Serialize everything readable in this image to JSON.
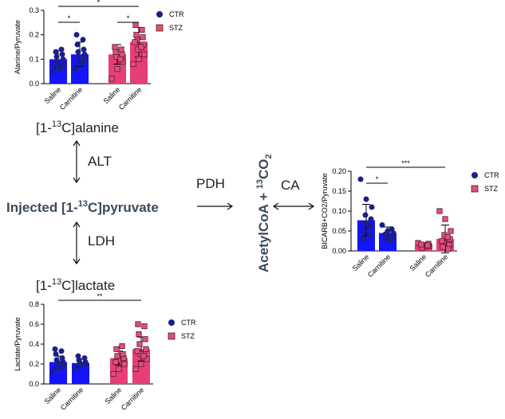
{
  "diagram": {
    "alanine": {
      "prefix": "[1-",
      "sup": "13",
      "suffix": "C]alanine"
    },
    "pyruvate": {
      "prefix": "Injected [1-",
      "sup": "13",
      "suffix": "C]pyruvate"
    },
    "lactate": {
      "prefix": "[1-",
      "sup": "13",
      "suffix": "C]lactate"
    },
    "acetyl": {
      "main": "AcetylCoA + ",
      "sup": "13",
      "rest": "CO",
      "sub": "2"
    },
    "alt": "ALT",
    "ldh": "LDH",
    "pdh": "PDH",
    "ca": "CA"
  },
  "chart_data": [
    {
      "type": "bar",
      "ylabel": "Alanine/Pyruvate",
      "categories": [
        "Saline",
        "Carnitine",
        "Saline",
        "Carnitine"
      ],
      "ylim": [
        0,
        0.3
      ],
      "yticks": [
        {
          "value": 0,
          "label": "0.0"
        },
        0.1,
        0.2,
        0.3
      ],
      "series": [
        {
          "name": "CTR",
          "color": "#1414ff",
          "point_color": "#1b1f8a",
          "marker": "circle",
          "values": [
            0.1,
            0.12,
            null,
            null
          ],
          "errors": [
            0.035,
            0.05,
            null,
            null
          ],
          "points": [
            [
              0.05,
              0.07,
              0.08,
              0.09,
              0.1,
              0.11,
              0.12,
              0.13,
              0.14,
              0.08,
              0.06
            ],
            [
              0.06,
              0.08,
              0.1,
              0.11,
              0.12,
              0.13,
              0.14,
              0.16,
              0.18,
              0.2,
              0.09
            ],
            null,
            null
          ]
        },
        {
          "name": "STZ",
          "color": "#e83e78",
          "point_color": "#e0507a",
          "marker": "square",
          "values": [
            null,
            null,
            0.12,
            0.17
          ],
          "errors": [
            null,
            null,
            0.04,
            0.06
          ],
          "points": [
            null,
            null,
            [
              0.02,
              0.06,
              0.09,
              0.11,
              0.12,
              0.13,
              0.14,
              0.15,
              0.1
            ],
            [
              0.08,
              0.1,
              0.12,
              0.14,
              0.16,
              0.18,
              0.19,
              0.2,
              0.22,
              0.24,
              0.15,
              0.17
            ]
          ]
        }
      ],
      "significance": [
        {
          "from": 0,
          "to": 1,
          "label": "*"
        },
        {
          "from": 0,
          "to": 3,
          "label": "*"
        },
        {
          "from": 2,
          "to": 3,
          "label": "*"
        }
      ]
    },
    {
      "type": "bar",
      "ylabel": "BICARB+CO2/Pyruvate",
      "categories": [
        "Saline",
        "Carnitine",
        "Saline",
        "Carnitine"
      ],
      "ylim": [
        0,
        0.2
      ],
      "yticks": [
        {
          "value": 0,
          "label": "0.00"
        },
        {
          "value": 0.05,
          "label": "0.05"
        },
        {
          "value": 0.1,
          "label": "0.10"
        },
        {
          "value": 0.15,
          "label": "0.15"
        },
        {
          "value": 0.2,
          "label": "0.20"
        }
      ],
      "series": [
        {
          "name": "CTR",
          "color": "#1414ff",
          "point_color": "#1b1f8a",
          "marker": "circle",
          "values": [
            0.077,
            0.045,
            null,
            null
          ],
          "errors": [
            0.04,
            0.015,
            null,
            null
          ],
          "points": [
            [
              0.18,
              0.13,
              0.11,
              0.09,
              0.08,
              0.07,
              0.06,
              0.05,
              0.04,
              0.03,
              0.065
            ],
            [
              0.065,
              0.05,
              0.045,
              0.04,
              0.035,
              0.03,
              0.055,
              0.042,
              0.025
            ],
            null,
            null
          ]
        },
        {
          "name": "STZ",
          "color": "#e83e78",
          "point_color": "#e0507a",
          "marker": "square",
          "values": [
            null,
            null,
            0.014,
            0.03
          ],
          "errors": [
            null,
            null,
            0.006,
            0.035
          ],
          "points": [
            null,
            null,
            [
              0.02,
              0.015,
              0.012,
              0.01,
              0.018,
              0.008,
              0.014,
              0.016
            ],
            [
              0.1,
              0.08,
              0.05,
              0.04,
              0.03,
              0.02,
              0.015,
              0.01,
              0.005,
              0.025,
              0.035
            ]
          ]
        }
      ],
      "significance": [
        {
          "from": 0,
          "to": 1,
          "label": "*"
        },
        {
          "from": 0,
          "to": 3,
          "label": "***"
        }
      ]
    },
    {
      "type": "bar",
      "ylabel": "Lactate/Pyruvate",
      "categories": [
        "Saline",
        "Carnitine",
        "Saline",
        "Carnitine"
      ],
      "ylim": [
        0,
        0.8
      ],
      "yticks": [
        {
          "value": 0,
          "label": "0.0"
        },
        0.2,
        0.4,
        0.6,
        0.8
      ],
      "series": [
        {
          "name": "CTR",
          "color": "#1414ff",
          "point_color": "#1b1f8a",
          "marker": "circle",
          "values": [
            0.22,
            0.21,
            null,
            null
          ],
          "errors": [
            0.06,
            0.04,
            null,
            null
          ],
          "points": [
            [
              0.12,
              0.15,
              0.18,
              0.2,
              0.22,
              0.24,
              0.26,
              0.3,
              0.33,
              0.35,
              0.21
            ],
            [
              0.15,
              0.18,
              0.2,
              0.21,
              0.22,
              0.24,
              0.26,
              0.28,
              0.19
            ],
            null,
            null
          ]
        },
        {
          "name": "STZ",
          "color": "#e83e78",
          "point_color": "#e0507a",
          "marker": "square",
          "values": [
            null,
            null,
            0.26,
            0.35
          ],
          "errors": [
            null,
            null,
            0.07,
            0.12
          ],
          "points": [
            null,
            null,
            [
              0.1,
              0.15,
              0.2,
              0.24,
              0.26,
              0.28,
              0.3,
              0.35,
              0.38,
              0.22
            ],
            [
              0.15,
              0.2,
              0.25,
              0.3,
              0.35,
              0.4,
              0.45,
              0.5,
              0.58,
              0.6,
              0.28,
              0.33
            ]
          ]
        }
      ],
      "significance": [
        {
          "from": 0,
          "to": 3,
          "label": "**"
        }
      ]
    }
  ]
}
